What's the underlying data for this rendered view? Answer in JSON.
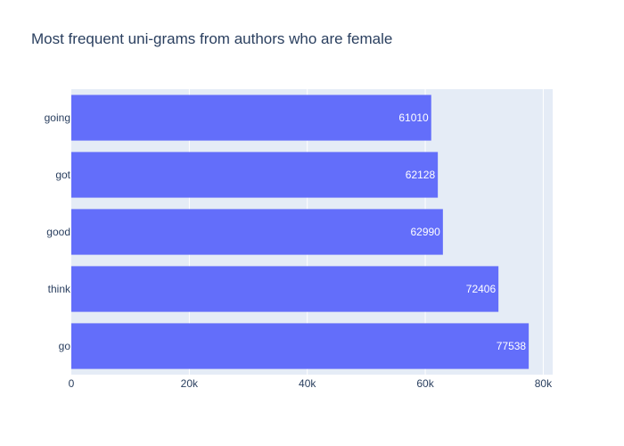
{
  "chart_data": {
    "type": "bar",
    "orientation": "horizontal",
    "title": "Most frequent uni-grams from authors who are female",
    "categories": [
      "going",
      "got",
      "good",
      "think",
      "go"
    ],
    "values": [
      61010,
      62128,
      62990,
      72406,
      77538
    ],
    "xlabel": "",
    "ylabel": "",
    "xlim": [
      0,
      81600
    ],
    "xticks": [
      0,
      20000,
      40000,
      60000,
      80000
    ],
    "xtick_labels": [
      "0",
      "20k",
      "40k",
      "60k",
      "80k"
    ],
    "grid": true,
    "colors": {
      "bar": "#636efa",
      "plot_bg": "#e5ecf6",
      "grid": "#ffffff",
      "text": "#2a3f5f"
    }
  }
}
